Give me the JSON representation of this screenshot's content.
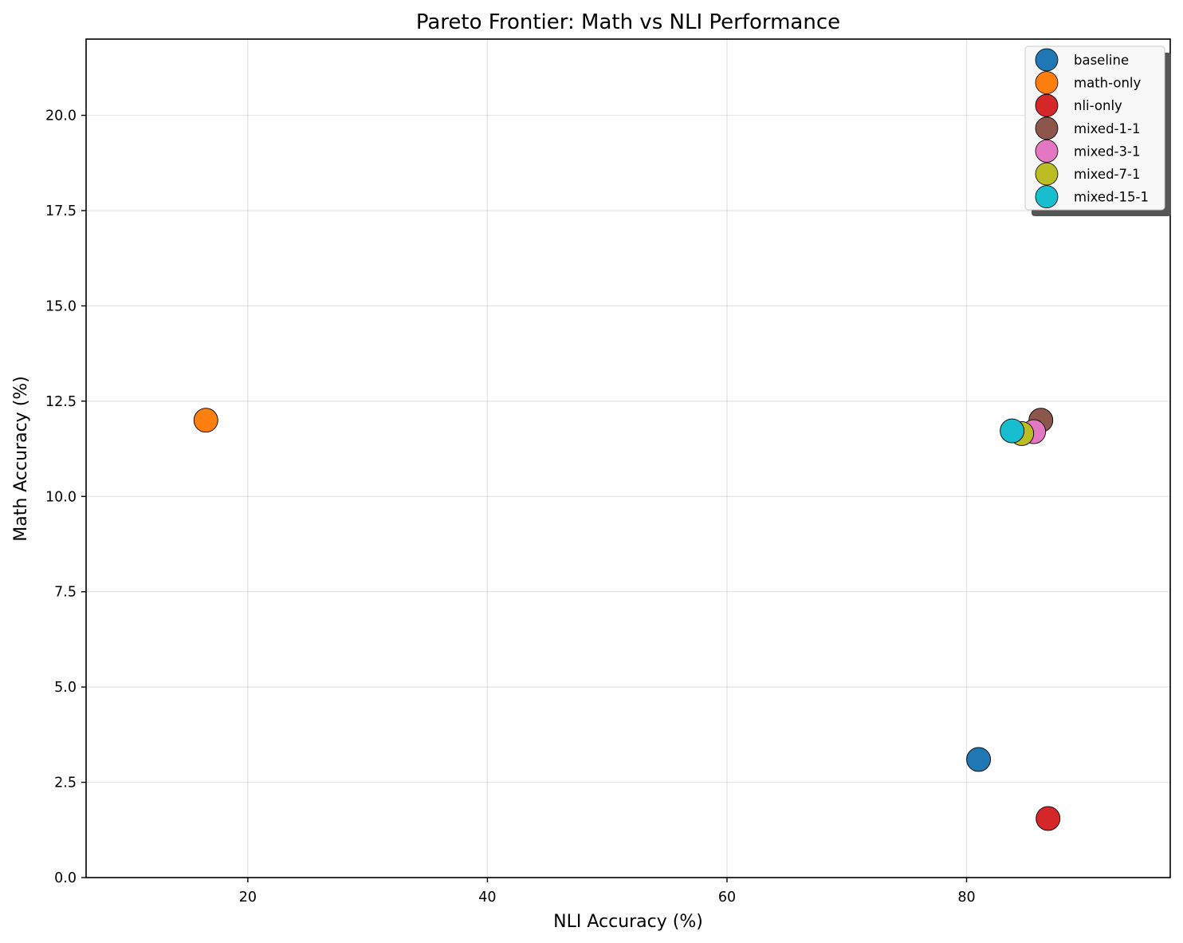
{
  "chart_data": {
    "type": "scatter",
    "title": "Pareto Frontier: Math vs NLI Performance",
    "xlabel": "NLI Accuracy (%)",
    "ylabel": "Math Accuracy (%)",
    "xlim": [
      6.5,
      97
    ],
    "ylim": [
      0,
      22
    ],
    "xticks": [
      20,
      40,
      60,
      80
    ],
    "yticks": [
      0.0,
      2.5,
      5.0,
      7.5,
      10.0,
      12.5,
      15.0,
      17.5,
      20.0
    ],
    "xtick_labels": [
      "20",
      "40",
      "60",
      "80"
    ],
    "ytick_labels": [
      "0.0",
      "2.5",
      "5.0",
      "7.5",
      "10.0",
      "12.5",
      "15.0",
      "17.5",
      "20.0"
    ],
    "grid": true,
    "legend_position": "top-right",
    "series": [
      {
        "name": "baseline",
        "color": "#1f77b4",
        "x": [
          81.0
        ],
        "y": [
          3.1
        ]
      },
      {
        "name": "math-only",
        "color": "#ff7f0e",
        "x": [
          16.5
        ],
        "y": [
          12.0
        ]
      },
      {
        "name": "nli-only",
        "color": "#d62728",
        "x": [
          86.8
        ],
        "y": [
          1.55
        ]
      },
      {
        "name": "mixed-1-1",
        "color": "#8c564b",
        "x": [
          86.2
        ],
        "y": [
          12.0
        ]
      },
      {
        "name": "mixed-3-1",
        "color": "#e377c2",
        "x": [
          85.6
        ],
        "y": [
          11.7
        ]
      },
      {
        "name": "mixed-7-1",
        "color": "#bcbd22",
        "x": [
          84.6
        ],
        "y": [
          11.65
        ]
      },
      {
        "name": "mixed-15-1",
        "color": "#17becf",
        "x": [
          83.8
        ],
        "y": [
          11.72
        ]
      }
    ]
  }
}
